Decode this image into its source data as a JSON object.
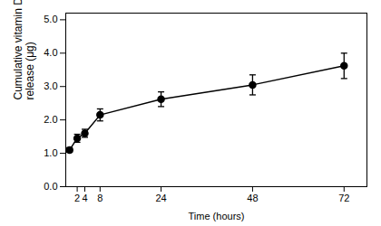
{
  "chart_data": {
    "type": "line",
    "x": [
      0,
      2,
      4,
      8,
      24,
      48,
      72
    ],
    "values": [
      1.1,
      1.45,
      1.6,
      2.15,
      2.62,
      3.05,
      3.62
    ],
    "yerr": [
      0.07,
      0.12,
      0.12,
      0.18,
      0.22,
      0.3,
      0.38
    ],
    "xlim": [
      -1,
      78
    ],
    "xticks": [
      2,
      4,
      8,
      24,
      48,
      72
    ],
    "ylim": [
      0,
      5.2
    ],
    "yticks": [
      0,
      1,
      2,
      3,
      4,
      5
    ],
    "xlabel": "Time (hours)",
    "ylabel": "Cumulative vitamin D\nrelease (μg)",
    "color": "#000000",
    "marker": "circle"
  }
}
